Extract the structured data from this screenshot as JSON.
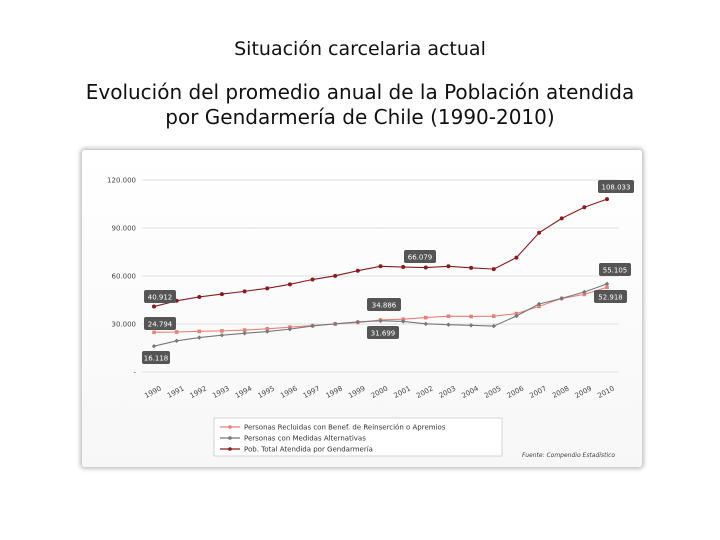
{
  "header": {
    "title": "Situación carcelaria actual",
    "subtitle_line1": "Evolución del promedio anual de la Población atendida",
    "subtitle_line2": "por Gendarmería de Chile (1990-2010)"
  },
  "chart_data": {
    "type": "line",
    "x": [
      "1990",
      "1991",
      "1992",
      "1993",
      "1994",
      "1995",
      "1996",
      "1997",
      "1998",
      "1999",
      "2000",
      "2001",
      "2002",
      "2003",
      "2004",
      "2005",
      "2006",
      "2007",
      "2008",
      "2009",
      "2010"
    ],
    "y_ticks": [
      "120.000",
      "90.000",
      "60.000",
      "30.000",
      "-"
    ],
    "ylim": [
      0,
      120000
    ],
    "grid": true,
    "legend_position": "bottom",
    "series": [
      {
        "name": "Personas Recluidas con Benef. de Reinserción o Apremios",
        "color": "#e8807a",
        "values": [
          24794,
          25000,
          25400,
          25700,
          26200,
          27000,
          28000,
          29000,
          30000,
          31000,
          32500,
          33000,
          34000,
          34886,
          34700,
          34900,
          36500,
          41000,
          46000,
          48500,
          52918
        ]
      },
      {
        "name": "Personas con Medidas Alternativas",
        "color": "#777777",
        "values": [
          16118,
          19500,
          21500,
          23000,
          24200,
          25300,
          26800,
          28800,
          30100,
          31300,
          32000,
          31600,
          30100,
          29600,
          29200,
          28700,
          35000,
          42500,
          46000,
          50000,
          55105
        ]
      },
      {
        "name": "Pob. Total Atendida por Gendarmería",
        "color": "#8a1a1f",
        "values": [
          40912,
          44500,
          46900,
          48700,
          50400,
          52300,
          54800,
          57800,
          60100,
          63300,
          66079,
          65600,
          65300,
          66079,
          65100,
          64300,
          71500,
          87000,
          96000,
          103000,
          108033
        ]
      }
    ],
    "data_labels": [
      "108.033",
      "66.079",
      "55.105",
      "52.918",
      "40.912",
      "34.886",
      "24.794",
      "31.699",
      "16.118"
    ],
    "source": "Fuente: Compendio Estadístico"
  }
}
